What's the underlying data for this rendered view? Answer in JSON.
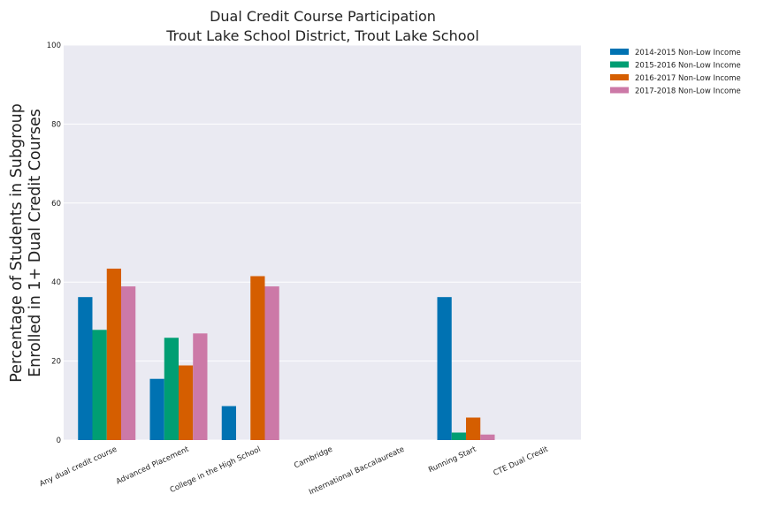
{
  "chart_data": {
    "type": "bar",
    "title_line1": "Dual Credit Course Participation",
    "title_line2": "Trout Lake School District, Trout Lake School",
    "ylabel_line1": "Percentage of Students in Subgroup",
    "ylabel_line2": "Enrolled in 1+ Dual Credit Courses",
    "xlabel": "",
    "ylim": [
      0,
      100
    ],
    "yticks": [
      0,
      20,
      40,
      60,
      80,
      100
    ],
    "grid": true,
    "legend_position": "outside-top-right",
    "categories": [
      "Any dual credit course",
      "Advanced Placement",
      "College in the High School",
      "Cambridge",
      "International Baccalaureate",
      "Running Start",
      "CTE Dual Credit"
    ],
    "series": [
      {
        "name": "2014-2015 Non-Low Income",
        "color": "#0072b2",
        "values": [
          36.2,
          15.5,
          8.6,
          0,
          0,
          36.2,
          0
        ]
      },
      {
        "name": "2015-2016 Non-Low Income",
        "color": "#009e73",
        "values": [
          27.9,
          25.9,
          0,
          0,
          0,
          1.9,
          0
        ]
      },
      {
        "name": "2016-2017 Non-Low Income",
        "color": "#d55e00",
        "values": [
          43.4,
          18.9,
          41.5,
          0,
          0,
          5.7,
          0
        ]
      },
      {
        "name": "2017-2018 Non-Low Income",
        "color": "#cc79a7",
        "values": [
          38.9,
          27.0,
          38.9,
          0,
          0,
          1.4,
          0
        ]
      }
    ]
  }
}
